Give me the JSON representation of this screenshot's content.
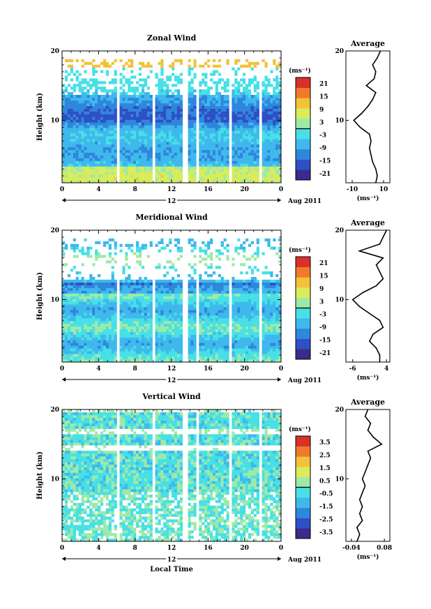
{
  "chart_data": [
    {
      "type": "heatmap",
      "title": "Zonal Wind",
      "ylabel": "Height (km)",
      "xlabel": "",
      "x_ticks": [
        "0",
        "4",
        "8",
        "12",
        "16",
        "20",
        "0"
      ],
      "xlim": [
        0,
        24
      ],
      "y_ticks": [
        "10",
        "20"
      ],
      "ylim": [
        1,
        20
      ],
      "date_label": "12",
      "date_suffix": "Aug 2011",
      "colorbar": {
        "unit": "(ms⁻¹)",
        "ticks": [
          "21",
          "15",
          "9",
          "3",
          "-3",
          "-9",
          "-15",
          "-21"
        ],
        "range": [
          -24,
          24
        ]
      },
      "gaps": [
        [
          5.9,
          6.3
        ],
        [
          10.0,
          10.3
        ],
        [
          13.3,
          13.7
        ],
        [
          14.6,
          15.0
        ],
        [
          18.2,
          18.6
        ],
        [
          21.5,
          21.9
        ]
      ],
      "profile": {
        "title": "Average",
        "xlabel": "(ms⁻¹)",
        "x_ticks": [
          "-10",
          "10"
        ],
        "xlim": [
          -14,
          14
        ],
        "y_ticks": [
          "10",
          "20"
        ],
        "z": [
          1,
          2,
          3,
          4,
          5,
          6,
          7,
          8,
          9,
          10,
          11,
          12,
          13,
          14,
          15,
          16,
          17,
          18,
          19,
          20
        ],
        "x": [
          5,
          6,
          5,
          3,
          2,
          1,
          2,
          1,
          -5,
          -9,
          -4,
          0,
          3,
          5,
          -1,
          4,
          5,
          3,
          6,
          8
        ]
      }
    },
    {
      "type": "heatmap",
      "title": "Meridional Wind",
      "ylabel": "Height (km)",
      "xlabel": "",
      "x_ticks": [
        "0",
        "4",
        "8",
        "12",
        "16",
        "20",
        "0"
      ],
      "xlim": [
        0,
        24
      ],
      "y_ticks": [
        "10",
        "20"
      ],
      "ylim": [
        1,
        20
      ],
      "date_label": "12",
      "date_suffix": "Aug 2011",
      "colorbar": {
        "unit": "(ms⁻¹)",
        "ticks": [
          "21",
          "15",
          "9",
          "3",
          "-3",
          "-9",
          "-15",
          "-21"
        ],
        "range": [
          -24,
          24
        ]
      },
      "gaps": [
        [
          5.9,
          6.3
        ],
        [
          10.0,
          10.3
        ],
        [
          13.3,
          13.7
        ],
        [
          14.6,
          15.0
        ],
        [
          18.2,
          18.6
        ],
        [
          21.5,
          21.9
        ]
      ],
      "profile": {
        "title": "Average",
        "xlabel": "(ms⁻¹)",
        "x_ticks": [
          "-6",
          "4"
        ],
        "xlim": [
          -8,
          5
        ],
        "y_ticks": [
          "10",
          "20"
        ],
        "z": [
          1,
          2,
          3,
          4,
          5,
          6,
          7,
          8,
          9,
          10,
          11,
          12,
          13,
          14,
          15,
          16,
          17,
          18,
          19,
          20
        ],
        "x": [
          2,
          2,
          1,
          -1,
          0,
          3,
          2,
          -1,
          -4,
          -6,
          -3,
          1,
          3,
          2,
          1,
          3,
          -4,
          2,
          3,
          4
        ]
      }
    },
    {
      "type": "heatmap",
      "title": "Vertical Wind",
      "ylabel": "Height (km)",
      "xlabel": "Local Time",
      "x_ticks": [
        "0",
        "4",
        "8",
        "12",
        "16",
        "20",
        "0"
      ],
      "xlim": [
        0,
        24
      ],
      "y_ticks": [
        "10",
        "20"
      ],
      "ylim": [
        1,
        20
      ],
      "date_label": "12",
      "date_suffix": "Aug 2011",
      "colorbar": {
        "unit": "(ms⁻¹)",
        "ticks": [
          "3.5",
          "2.5",
          "1.5",
          "0.5",
          "-0.5",
          "-1.5",
          "-2.5",
          "-3.5"
        ],
        "range": [
          -4,
          4
        ]
      },
      "gaps": [
        [
          5.9,
          6.3
        ],
        [
          10.0,
          10.3
        ],
        [
          13.3,
          13.7
        ],
        [
          14.6,
          15.0
        ],
        [
          18.2,
          18.6
        ],
        [
          21.5,
          21.9
        ]
      ],
      "profile": {
        "title": "Average",
        "xlabel": "(ms⁻¹)",
        "x_ticks": [
          "-0.04",
          "0.08"
        ],
        "xlim": [
          -0.06,
          0.1
        ],
        "y_ticks": [
          "10",
          "20"
        ],
        "z": [
          1,
          2,
          3,
          4,
          5,
          6,
          7,
          8,
          9,
          10,
          11,
          12,
          13,
          14,
          15,
          16,
          17,
          18,
          19,
          20
        ],
        "x": [
          -0.02,
          -0.01,
          -0.02,
          0.0,
          -0.01,
          0.0,
          -0.01,
          0.0,
          0.01,
          0.0,
          0.01,
          0.02,
          0.03,
          0.02,
          0.07,
          0.04,
          0.02,
          0.03,
          0.01,
          0.02
        ]
      }
    }
  ]
}
